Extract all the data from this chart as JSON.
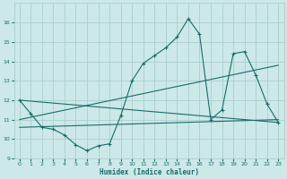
{
  "xlabel": "Humidex (Indice chaleur)",
  "xlim": [
    -0.5,
    23.5
  ],
  "ylim": [
    9,
    17
  ],
  "yticks": [
    9,
    10,
    11,
    12,
    13,
    14,
    15,
    16
  ],
  "xticks": [
    0,
    1,
    2,
    3,
    4,
    5,
    6,
    7,
    8,
    9,
    10,
    11,
    12,
    13,
    14,
    15,
    16,
    17,
    18,
    19,
    20,
    21,
    22,
    23
  ],
  "bg_color": "#cce8e8",
  "grid_color": "#aacece",
  "line_color": "#1a6b6b",
  "series": [
    [
      0,
      12.0
    ],
    [
      1,
      11.3
    ],
    [
      2,
      10.6
    ],
    [
      3,
      10.5
    ],
    [
      4,
      10.2
    ],
    [
      5,
      9.7
    ],
    [
      6,
      9.4
    ],
    [
      7,
      9.65
    ],
    [
      8,
      9.75
    ],
    [
      9,
      11.2
    ],
    [
      10,
      13.0
    ],
    [
      11,
      13.9
    ],
    [
      12,
      14.3
    ],
    [
      13,
      14.7
    ],
    [
      14,
      15.25
    ],
    [
      15,
      16.2
    ],
    [
      16,
      15.4
    ],
    [
      17,
      11.0
    ],
    [
      18,
      11.5
    ],
    [
      19,
      14.4
    ],
    [
      20,
      14.5
    ],
    [
      21,
      13.3
    ],
    [
      22,
      11.8
    ],
    [
      23,
      10.85
    ]
  ],
  "line_diagonal": [
    [
      0,
      12.0
    ],
    [
      23,
      10.85
    ]
  ],
  "line_upper_trend": [
    [
      0,
      11.0
    ],
    [
      23,
      13.8
    ]
  ],
  "line_lower_trend": [
    [
      0,
      10.6
    ],
    [
      23,
      11.0
    ]
  ]
}
